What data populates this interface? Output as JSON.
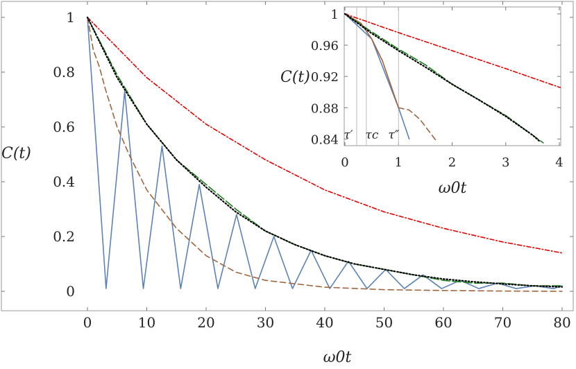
{
  "chart_data": [
    {
      "type": "line",
      "panel": "main",
      "xlabel": "ω0t",
      "ylabel": "C(t)",
      "xlim": [
        0,
        80
      ],
      "ylim": [
        0,
        1
      ],
      "xticks": [
        "0",
        "10",
        "20",
        "30",
        "40",
        "50",
        "60",
        "70",
        "80"
      ],
      "yticks": [
        "0",
        "0.2",
        "0.4",
        "0.6",
        "0.8",
        "1"
      ],
      "grid": false,
      "legend": "none",
      "series": [
        {
          "style": "solid",
          "color": "#5b82b8",
          "x": [
            0,
            3.14,
            6.28,
            9.42,
            12.57,
            15.71,
            18.85,
            21.99,
            25.13,
            28.27,
            31.42,
            34.56,
            37.7,
            40.84,
            43.98,
            47.12,
            50.27,
            53.41,
            56.55,
            59.69,
            62.83,
            65.97,
            69.12,
            72.26,
            75.4,
            78.54,
            80
          ],
          "y": [
            1,
            0.01,
            0.73,
            0.01,
            0.53,
            0.01,
            0.39,
            0.01,
            0.28,
            0.01,
            0.2,
            0.01,
            0.15,
            0.01,
            0.11,
            0.01,
            0.08,
            0.01,
            0.06,
            0.01,
            0.04,
            0.01,
            0.03,
            0.01,
            0.02,
            0.01,
            0.02
          ]
        },
        {
          "style": "dashed",
          "color": "#a0643c",
          "x": [
            0,
            1,
            2,
            3,
            5,
            7,
            10,
            15,
            20,
            25,
            30,
            40,
            50,
            60,
            70,
            80
          ],
          "y": [
            1,
            0.88,
            0.82,
            0.74,
            0.6,
            0.5,
            0.37,
            0.23,
            0.13,
            0.07,
            0.04,
            0.015,
            0.006,
            0.003,
            0.001,
            0
          ]
        },
        {
          "style": "dash-dot",
          "color": "#e00000",
          "x": [
            0,
            10,
            20,
            30,
            40,
            50,
            60,
            70,
            80
          ],
          "y": [
            1,
            0.78,
            0.61,
            0.48,
            0.37,
            0.29,
            0.23,
            0.18,
            0.14
          ]
        },
        {
          "style": "long-dash",
          "color": "#1a7f1a",
          "x": [
            0,
            5,
            10,
            15,
            20,
            25,
            30,
            35,
            40,
            45,
            50,
            55,
            60,
            65,
            70,
            75,
            80
          ],
          "y": [
            1,
            0.79,
            0.61,
            0.48,
            0.39,
            0.3,
            0.22,
            0.17,
            0.13,
            0.1,
            0.08,
            0.06,
            0.04,
            0.03,
            0.03,
            0.02,
            0.02
          ]
        },
        {
          "style": "dotted",
          "color": "#000000",
          "x": [
            0,
            5,
            10,
            15,
            20,
            25,
            30,
            35,
            40,
            45,
            50,
            55,
            60,
            65,
            70,
            75,
            80
          ],
          "y": [
            1,
            0.78,
            0.61,
            0.48,
            0.38,
            0.29,
            0.22,
            0.17,
            0.13,
            0.1,
            0.08,
            0.06,
            0.045,
            0.035,
            0.027,
            0.02,
            0.016
          ]
        }
      ]
    },
    {
      "type": "line",
      "panel": "inset",
      "xlabel": "ω0t",
      "ylabel": "C(t)",
      "xlim": [
        0,
        4
      ],
      "ylim": [
        0.835,
        1
      ],
      "xticks": [
        "0",
        "1",
        "2",
        "3",
        "4"
      ],
      "yticks": [
        "0.84",
        "0.88",
        "0.92",
        "0.96",
        "1"
      ],
      "grid": false,
      "legend": "none",
      "annotations": [
        {
          "label": "τ′",
          "x": 0.22
        },
        {
          "label": "τc",
          "x": 0.4
        },
        {
          "label": "τ″",
          "x": 1.0
        }
      ],
      "series": [
        {
          "style": "solid",
          "color": "#5b82b8",
          "x": [
            0,
            0.5,
            1,
            1.2
          ],
          "y": [
            1,
            0.968,
            0.88,
            0.84
          ]
        },
        {
          "style": "dashed",
          "color": "#a0643c",
          "x": [
            1,
            1.2,
            1.4,
            1.6,
            1.7
          ],
          "y": [
            0.88,
            0.877,
            0.865,
            0.847,
            0.838
          ]
        },
        {
          "style": "solid",
          "color": "#a0643c",
          "x": [
            0,
            0.3,
            0.5,
            0.7,
            0.9,
            1.0
          ],
          "y": [
            1,
            0.988,
            0.968,
            0.94,
            0.9,
            0.88
          ]
        },
        {
          "style": "dash-dot",
          "color": "#e00000",
          "x": [
            0,
            1,
            2,
            3,
            4.05
          ],
          "y": [
            1,
            0.976,
            0.953,
            0.93,
            0.905
          ]
        },
        {
          "style": "long-dash",
          "color": "#1a7f1a",
          "x": [
            0,
            0.5,
            1,
            1.5,
            2,
            2.5,
            3,
            3.5,
            3.7
          ],
          "y": [
            1,
            0.977,
            0.955,
            0.935,
            0.91,
            0.89,
            0.87,
            0.845,
            0.835
          ]
        },
        {
          "style": "dotted",
          "color": "#000000",
          "x": [
            0,
            0.5,
            1,
            1.5,
            2,
            2.5,
            3,
            3.5,
            3.65
          ],
          "y": [
            1,
            0.975,
            0.953,
            0.932,
            0.91,
            0.89,
            0.869,
            0.845,
            0.836
          ]
        }
      ]
    }
  ]
}
